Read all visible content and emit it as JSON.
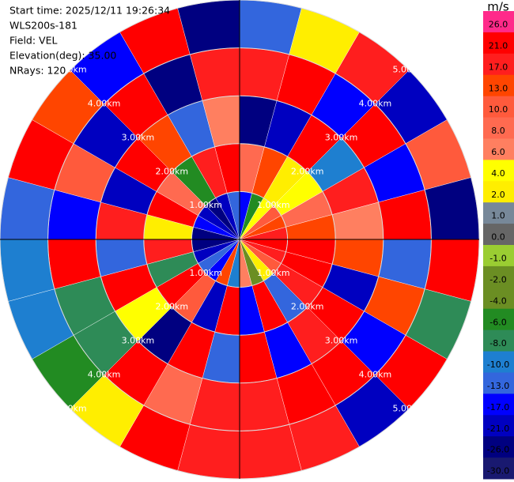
{
  "chart_data": {
    "type": "ppi",
    "annotations": [
      "Start time: 2025/12/11 19:26:34",
      "WLS200s-181",
      "Field: VEL",
      "Elevation(deg): 35.00",
      "NRays: 120"
    ],
    "azimuth_bins": [
      0,
      15,
      30,
      45,
      60,
      75,
      90,
      105,
      120,
      135,
      150,
      165,
      180,
      195,
      210,
      225,
      240,
      255,
      270,
      285,
      300,
      315,
      330,
      345,
      360
    ],
    "range_bins": [
      0,
      1,
      2,
      3,
      4,
      5
    ],
    "rticks": [
      {
        "value": 1,
        "label": "1.00km"
      },
      {
        "value": 2,
        "label": "2.00km"
      },
      {
        "value": 3,
        "label": "3.00km"
      },
      {
        "value": 4,
        "label": "4.00km"
      },
      {
        "value": 5,
        "label": "5.00km"
      }
    ],
    "values": [
      [
        -15,
        8,
        -22,
        18,
        -12
      ],
      [
        -5,
        14,
        -18,
        24,
        3
      ],
      [
        5,
        3,
        22,
        -14,
        19
      ],
      [
        12,
        5,
        -9,
        23,
        -20
      ],
      [
        14,
        9,
        20,
        -16,
        11
      ],
      [
        18,
        15,
        7,
        24,
        -23
      ],
      [
        22,
        25,
        16,
        -11,
        21
      ],
      [
        20,
        24,
        -19,
        13,
        -7
      ],
      [
        11,
        18,
        23,
        -15,
        25
      ],
      [
        3,
        -12,
        19,
        21,
        -18
      ],
      [
        -2,
        25,
        -14,
        24,
        19
      ],
      [
        7,
        -16,
        22,
        19,
        18
      ],
      [
        -9,
        21,
        -13,
        20,
        19
      ],
      [
        15,
        -20,
        23,
        9,
        24
      ],
      [
        -17,
        12,
        -24,
        22,
        3
      ],
      [
        -11,
        24,
        5,
        -7,
        -6
      ],
      [
        -19,
        -8,
        21,
        -7,
        -9
      ],
      [
        -23,
        17,
        -12,
        24,
        -10
      ],
      [
        -25,
        3,
        19,
        -15,
        -11
      ],
      [
        -14,
        22,
        -21,
        11,
        25
      ],
      [
        -20,
        9,
        24,
        -18,
        13
      ],
      [
        -24,
        -6,
        16,
        23,
        -16
      ],
      [
        -18,
        20,
        -11,
        -23,
        21
      ],
      [
        -13,
        24,
        6,
        19,
        -22
      ]
    ],
    "colorbar": {
      "label": "m/s",
      "ticks": [
        {
          "value": 26,
          "label": "26.0"
        },
        {
          "value": 21,
          "label": "21.0"
        },
        {
          "value": 17,
          "label": "17.0"
        },
        {
          "value": 13,
          "label": "13.0"
        },
        {
          "value": 10,
          "label": "10.0"
        },
        {
          "value": 8,
          "label": "8.0"
        },
        {
          "value": 6,
          "label": "6.0"
        },
        {
          "value": 4,
          "label": "4.0"
        },
        {
          "value": 2,
          "label": "2.0"
        },
        {
          "value": 1,
          "label": "1.0"
        },
        {
          "value": 0,
          "label": "0.0"
        },
        {
          "value": -1,
          "label": "-1.0"
        },
        {
          "value": -2,
          "label": "-2.0"
        },
        {
          "value": -4,
          "label": "-4.0"
        },
        {
          "value": -6,
          "label": "-6.0"
        },
        {
          "value": -8,
          "label": "-8.0"
        },
        {
          "value": -10,
          "label": "-10.0"
        },
        {
          "value": -13,
          "label": "-13.0"
        },
        {
          "value": -17,
          "label": "-17.0"
        },
        {
          "value": -21,
          "label": "-21.0"
        },
        {
          "value": -26,
          "label": "-26.0"
        },
        {
          "value": -30,
          "label": "-30.0"
        }
      ],
      "colors": [
        "#ff2a8a",
        "#ff0000",
        "#ff1e1e",
        "#ff4500",
        "#ff5a3c",
        "#ff6a50",
        "#ff7f60",
        "#ffff00",
        "#ffee00",
        "#778899",
        "#666666",
        "#9acd32",
        "#6b8e23",
        "#6b8e23",
        "#228b22",
        "#2e8b57",
        "#1e7fd0",
        "#3366dd",
        "#0000ff",
        "#0000c0",
        "#000080",
        "#191970"
      ]
    }
  }
}
